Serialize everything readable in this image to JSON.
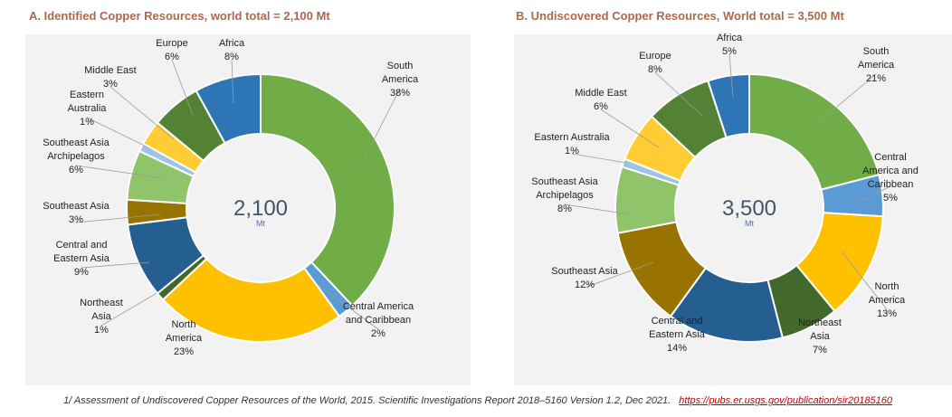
{
  "chart_data": [
    {
      "type": "pie",
      "variant": "donut",
      "title": "A. Identified Copper Resources, world total = 2,100 Mt",
      "center_value": "2,100",
      "center_unit": "Mt",
      "slices": [
        {
          "name": "South America",
          "value": 38,
          "pct": "38%",
          "label": [
            "South",
            "America",
            "38%"
          ],
          "color": "#70ad47"
        },
        {
          "name": "Central America and Caribbean",
          "value": 2,
          "pct": "2%",
          "label": [
            "Central America",
            "and Caribbean",
            "2%"
          ],
          "color": "#5b9bd5"
        },
        {
          "name": "North America",
          "value": 23,
          "pct": "23%",
          "label": [
            "North",
            "America",
            "23%"
          ],
          "color": "#ffc000"
        },
        {
          "name": "Northeast Asia",
          "value": 1,
          "pct": "1%",
          "label": [
            "Northeast",
            "Asia",
            "1%"
          ],
          "color": "#43682b"
        },
        {
          "name": "Central and Eastern Asia",
          "value": 9,
          "pct": "9%",
          "label": [
            "Central and",
            "Eastern Asia",
            "9%"
          ],
          "color": "#255e91"
        },
        {
          "name": "Southeast Asia",
          "value": 3,
          "pct": "3%",
          "label": [
            "Southeast Asia",
            "3%"
          ],
          "color": "#997300"
        },
        {
          "name": "Southeast Asia Archipelagos",
          "value": 6,
          "pct": "6%",
          "label": [
            "Southeast Asia",
            "Archipelagos",
            "6%"
          ],
          "color": "#8fc46a"
        },
        {
          "name": "Eastern Australia",
          "value": 1,
          "pct": "1%",
          "label": [
            "Eastern",
            "Australia",
            "1%"
          ],
          "color": "#9dc3e6"
        },
        {
          "name": "Middle East",
          "value": 3,
          "pct": "3%",
          "label": [
            "Middle East",
            "3%"
          ],
          "color": "#ffcd33"
        },
        {
          "name": "Europe",
          "value": 6,
          "pct": "6%",
          "label": [
            "Europe",
            "6%"
          ],
          "color": "#548235"
        },
        {
          "name": "Africa",
          "value": 8,
          "pct": "8%",
          "label": [
            "Africa",
            "8%"
          ],
          "color": "#2e75b6"
        }
      ]
    },
    {
      "type": "pie",
      "variant": "donut",
      "title": "B. Undiscovered Copper Resources, World total = 3,500 Mt",
      "center_value": "3,500",
      "center_unit": "Mt",
      "slices": [
        {
          "name": "South America",
          "value": 21,
          "pct": "21%",
          "label": [
            "South",
            "America",
            "21%"
          ],
          "color": "#70ad47"
        },
        {
          "name": "Central America and Caribbean",
          "value": 5,
          "pct": "5%",
          "label": [
            "Central",
            "America and",
            "Caribbean",
            "5%"
          ],
          "color": "#5b9bd5"
        },
        {
          "name": "North America",
          "value": 13,
          "pct": "13%",
          "label": [
            "North",
            "America",
            "13%"
          ],
          "color": "#ffc000"
        },
        {
          "name": "Northeast Asia",
          "value": 7,
          "pct": "7%",
          "label": [
            "Northeast",
            "Asia",
            "7%"
          ],
          "color": "#43682b"
        },
        {
          "name": "Central and Eastern Asia",
          "value": 14,
          "pct": "14%",
          "label": [
            "Central and",
            "Eastern Asia",
            "14%"
          ],
          "color": "#255e91"
        },
        {
          "name": "Southeast Asia",
          "value": 12,
          "pct": "12%",
          "label": [
            "Southeast Asia",
            "12%"
          ],
          "color": "#997300"
        },
        {
          "name": "Southeast Asia Archipelagos",
          "value": 8,
          "pct": "8%",
          "label": [
            "Southeast Asia",
            "Archipelagos",
            "8%"
          ],
          "color": "#8fc46a"
        },
        {
          "name": "Eastern Australia",
          "value": 1,
          "pct": "1%",
          "label": [
            "Eastern Australia",
            "1%"
          ],
          "color": "#9dc3e6"
        },
        {
          "name": "Middle East",
          "value": 6,
          "pct": "6%",
          "label": [
            "Middle East",
            "6%"
          ],
          "color": "#ffcd33"
        },
        {
          "name": "Europe",
          "value": 8,
          "pct": "8%",
          "label": [
            "Europe",
            "8%"
          ],
          "color": "#548235"
        },
        {
          "name": "Africa",
          "value": 5,
          "pct": "5%",
          "label": [
            "Africa",
            "5%"
          ],
          "color": "#2e75b6"
        }
      ]
    }
  ],
  "footnote": {
    "text": "1/ Assessment of Undiscovered Copper Resources of the World, 2015. Scientific Investigations Report 2018–5160 Version 1.2, Dec 2021.",
    "link": "https://pubs.er.usgs.gov/publication/sir20185160"
  }
}
